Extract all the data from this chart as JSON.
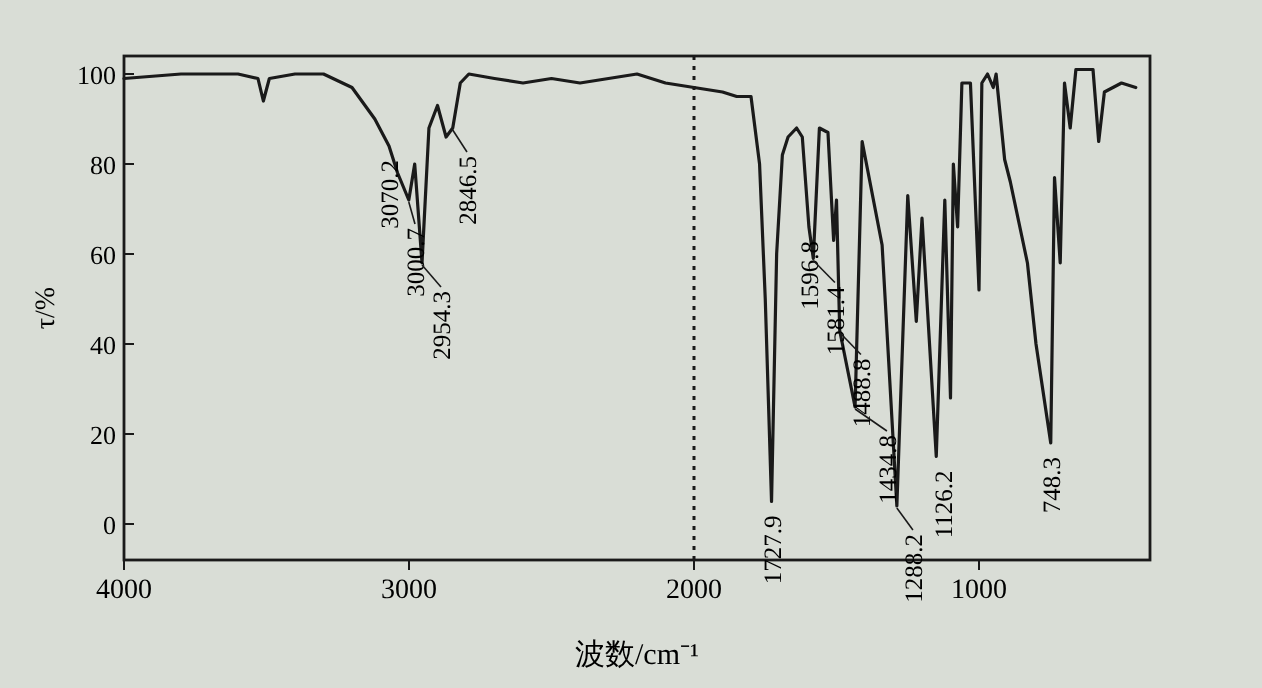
{
  "chart_data": {
    "type": "line",
    "xlabel": "波数/cm⁻¹",
    "ylabel": "τ/%",
    "x": [
      4000,
      3800,
      3600,
      3530,
      3511,
      3490,
      3400,
      3300,
      3200,
      3120,
      3070.2,
      3040,
      3000.7,
      2980,
      2954.3,
      2930,
      2900,
      2870,
      2846.5,
      2820,
      2790,
      2700,
      2600,
      2500,
      2400,
      2300,
      2200,
      2100,
      2000,
      1900,
      1850,
      1800,
      1770,
      1750,
      1727.9,
      1710,
      1690,
      1670,
      1640,
      1620,
      1596.8,
      1581.4,
      1560,
      1530,
      1510,
      1500,
      1488.8,
      1434.8,
      1410,
      1340,
      1288.2,
      1250,
      1220,
      1200,
      1150,
      1120,
      1100,
      1090,
      1075,
      1060,
      1030,
      1000,
      990,
      970,
      950,
      940,
      910,
      890,
      880,
      850,
      830,
      800,
      748.3,
      735,
      715,
      700,
      680,
      660,
      600,
      580,
      560,
      500,
      450
    ],
    "series": [
      {
        "color": "#1a1a1a",
        "values": [
          99,
          100,
          100,
          99,
          94,
          99,
          100,
          100,
          97,
          90,
          84,
          78,
          72,
          80,
          58,
          88,
          93,
          86,
          88,
          98,
          100,
          99,
          98,
          99,
          98,
          99,
          100,
          98,
          97,
          96,
          95,
          95,
          80,
          50,
          5,
          60,
          82,
          86,
          88,
          86,
          66,
          59,
          88,
          87,
          63,
          72,
          43,
          26,
          85,
          62,
          4,
          73,
          45,
          68,
          15,
          72,
          28,
          80,
          66,
          98,
          98,
          52,
          98,
          100,
          97,
          100,
          81,
          76,
          73,
          64,
          58,
          40,
          18,
          77,
          58,
          98,
          88,
          101,
          101,
          85,
          96,
          98,
          97
        ]
      }
    ],
    "xlim": [
      4000,
      400
    ],
    "ylim": [
      -8,
      104
    ],
    "xticks": [
      4000,
      3000,
      2000,
      1000
    ],
    "yticks": [
      0,
      20,
      40,
      60,
      80,
      100
    ],
    "ref_lines": [
      {
        "axis": "x",
        "value": 2000,
        "line_style": "dotted",
        "color": "#1a1a1a"
      }
    ],
    "annotations": [
      {
        "text": "3070.2",
        "x": 3070.2,
        "y": 84
      },
      {
        "text": "3000.7",
        "x": 3000.7,
        "y": 72
      },
      {
        "text": "2954.3",
        "x": 2954.3,
        "y": 58
      },
      {
        "text": "2846.5",
        "x": 2846.5,
        "y": 88
      },
      {
        "text": "1727.9",
        "x": 1727.9,
        "y": 5
      },
      {
        "text": "1596.8",
        "x": 1596.8,
        "y": 66
      },
      {
        "text": "1581.4",
        "x": 1581.4,
        "y": 59
      },
      {
        "text": "1488.8",
        "x": 1488.8,
        "y": 43
      },
      {
        "text": "1434.8",
        "x": 1434.8,
        "y": 26
      },
      {
        "text": "1288.2",
        "x": 1288.2,
        "y": 4
      },
      {
        "text": "1126.2",
        "x": 1126.2,
        "y": 15
      },
      {
        "text": "748.3",
        "x": 748.3,
        "y": 18
      }
    ],
    "grid": false,
    "marker": "none",
    "line_style": "solid"
  }
}
